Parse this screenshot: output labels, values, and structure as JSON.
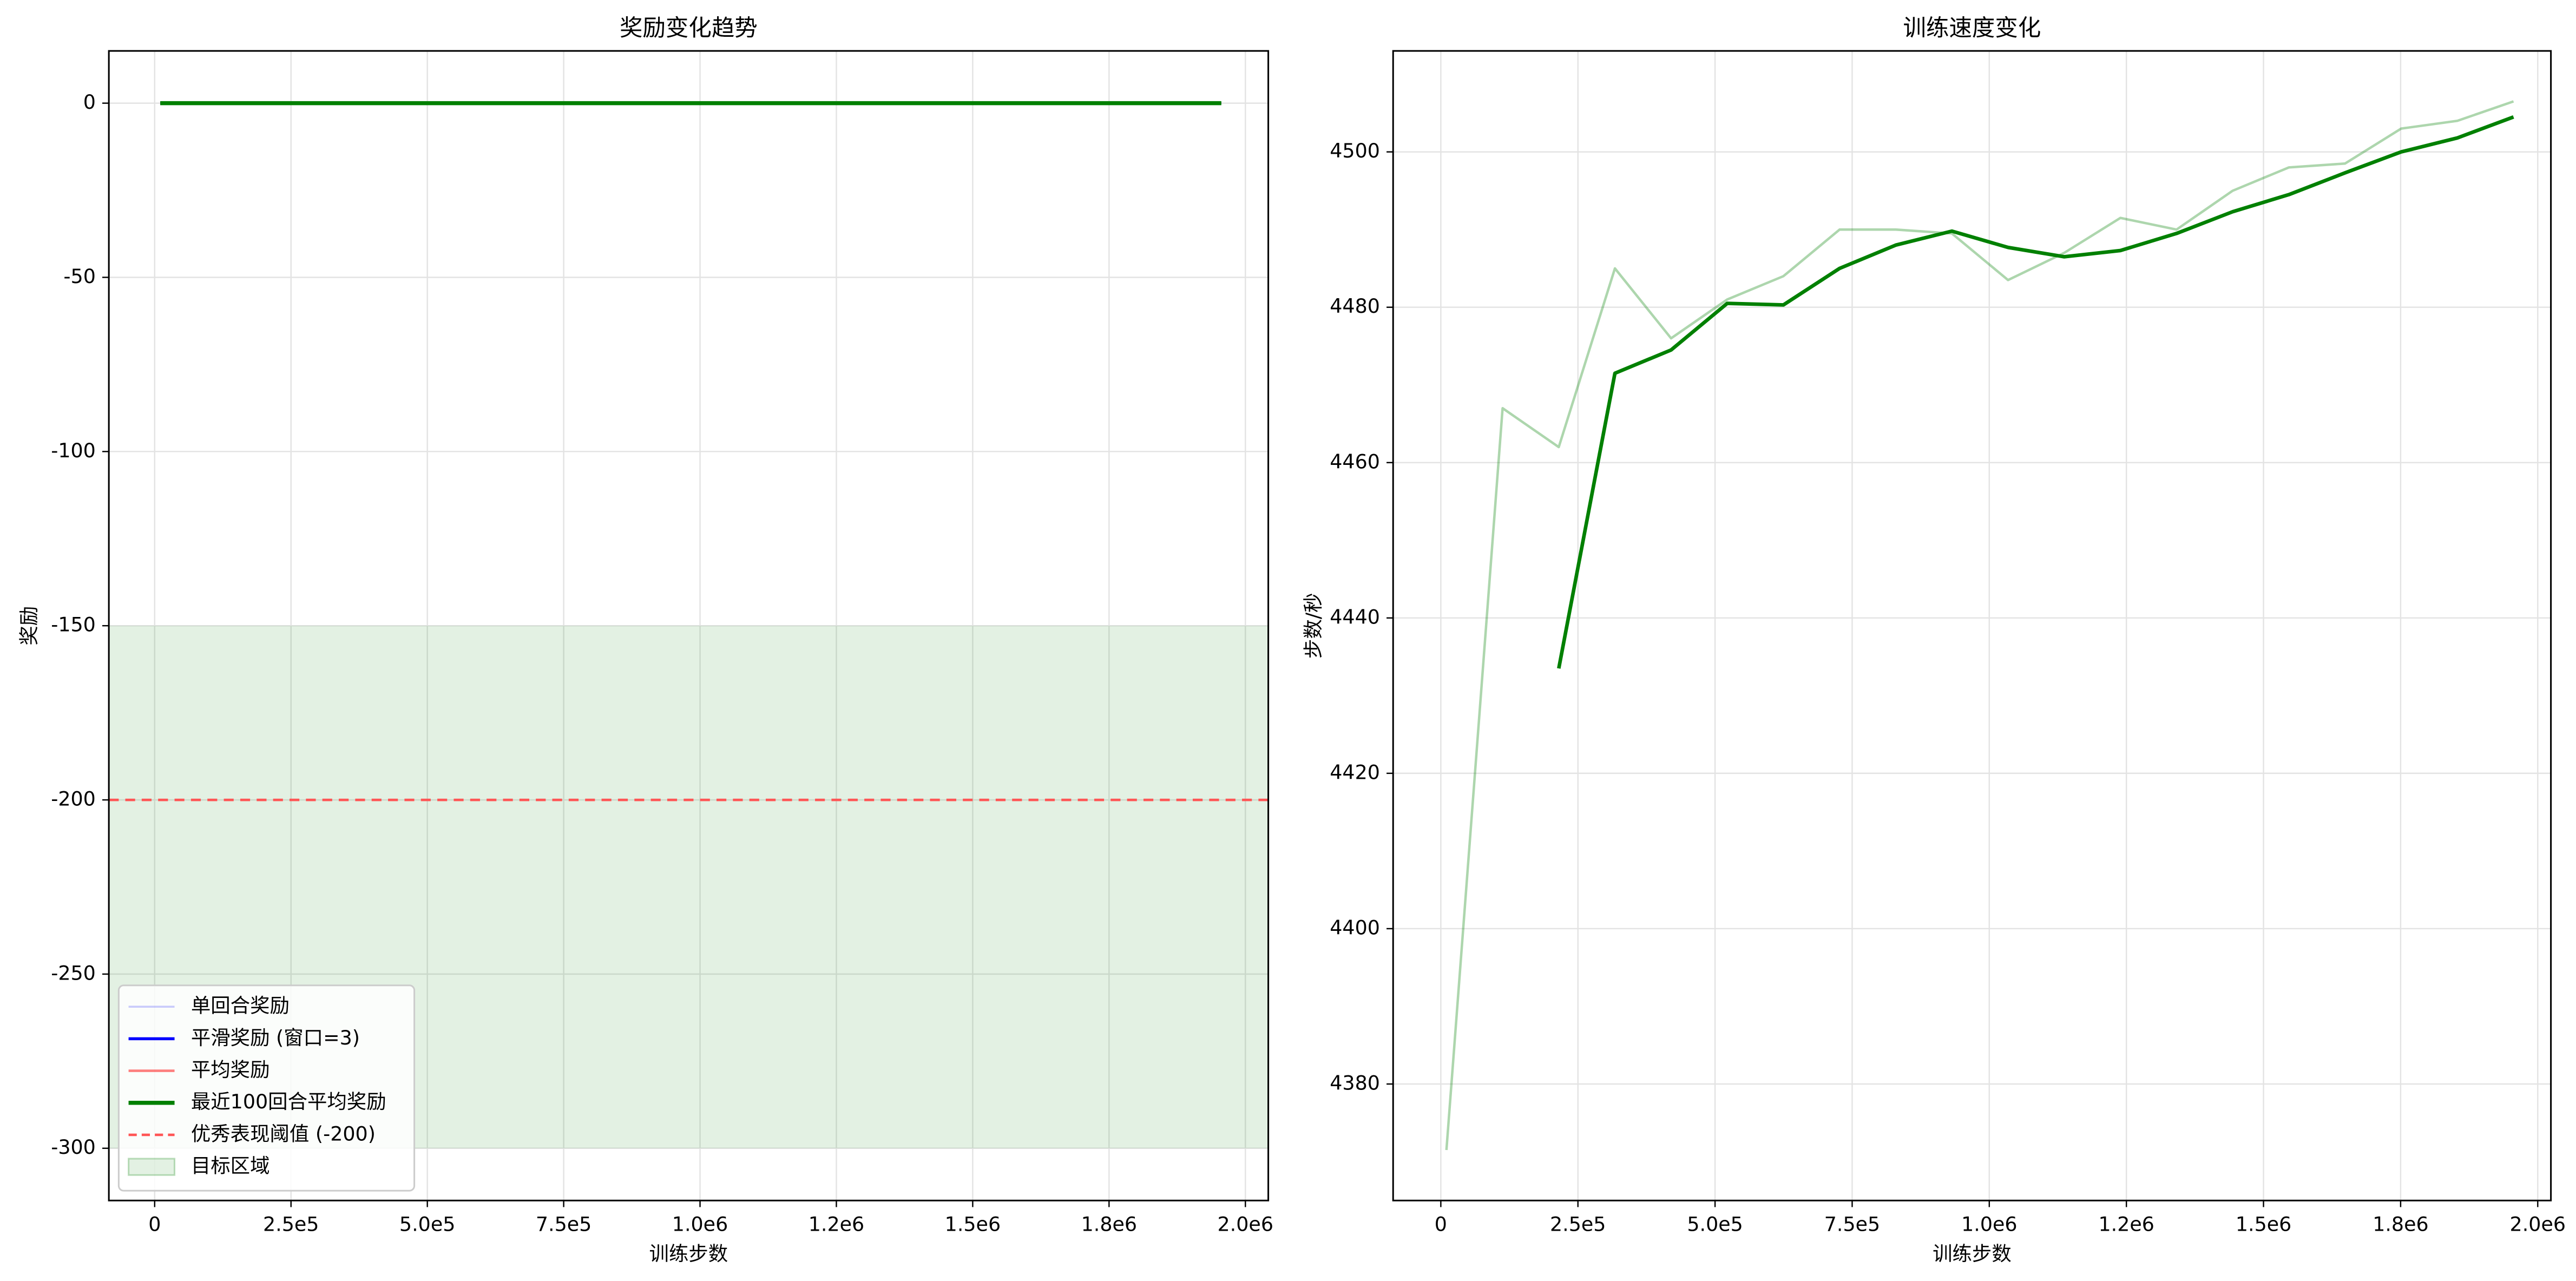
{
  "chart_data": [
    {
      "type": "line",
      "title": "奖励变化趋势",
      "xlabel": "训练步数",
      "ylabel": "奖励",
      "x": [
        10240,
        112640,
        215040,
        317440,
        419840,
        522240,
        624640,
        727040,
        829440,
        931840,
        1034240,
        1136640,
        1239040,
        1341440,
        1443840,
        1546240,
        1648640,
        1751040,
        1853440,
        1955840
      ],
      "series": [
        {
          "name": "单回合奖励",
          "color": "rgba(0,0,255,0.2)",
          "width": 1.2,
          "values": [
            0,
            0,
            0,
            0,
            0,
            0,
            0,
            0,
            0,
            0,
            0,
            0,
            0,
            0,
            0,
            0,
            0,
            0,
            0,
            0
          ]
        },
        {
          "name": "平滑奖励 (窗口=3)",
          "color": "#0000ff",
          "width": 1.8,
          "values": [
            0,
            0,
            0,
            0,
            0,
            0,
            0,
            0,
            0,
            0,
            0,
            0,
            0,
            0,
            0,
            0,
            0,
            0,
            0,
            0
          ]
        },
        {
          "name": "平均奖励",
          "color": "rgba(255,0,0,0.5)",
          "width": 1.5,
          "values": [
            0,
            0,
            0,
            0,
            0,
            0,
            0,
            0,
            0,
            0,
            0,
            0,
            0,
            0,
            0,
            0,
            0,
            0,
            0,
            0
          ]
        },
        {
          "name": "最近100回合平均奖励",
          "color": "#008000",
          "width": 2.5,
          "values": [
            0,
            0,
            0,
            0,
            0,
            0,
            0,
            0,
            0,
            0,
            0,
            0,
            0,
            0,
            0,
            0,
            0,
            0,
            0,
            0
          ]
        }
      ],
      "threshold": {
        "name": "优秀表现阈值 (-200)",
        "value": -200,
        "color": "#ff5555"
      },
      "target_zone": {
        "name": "目标区域",
        "range": [
          -300,
          -150
        ],
        "color": "rgba(0,128,0,0.11)"
      },
      "xlim": [
        -84000,
        2042000
      ],
      "ylim": [
        -315,
        15
      ],
      "xticks": [
        0,
        {
          "value": 250000,
          "label": "2.5e5"
        },
        {
          "value": 500000,
          "label": "5.0e5"
        },
        {
          "value": 750000,
          "label": "7.5e5"
        },
        {
          "value": 1000000,
          "label": "1.0e6"
        },
        {
          "value": 1250000,
          "label": "1.2e6"
        },
        {
          "value": 1500000,
          "label": "1.5e6"
        },
        {
          "value": 1750000,
          "label": "1.8e6"
        },
        {
          "value": 2000000,
          "label": "2.0e6"
        }
      ],
      "yticks": [
        -300,
        -250,
        -200,
        -150,
        -100,
        -50,
        0
      ],
      "grid": true,
      "legend": "lower left"
    },
    {
      "type": "line",
      "title": "训练速度变化",
      "xlabel": "训练步数",
      "ylabel": "步数/秒",
      "x": [
        10240,
        112640,
        215040,
        317440,
        419840,
        522240,
        624640,
        727040,
        829440,
        931840,
        1034240,
        1136640,
        1239040,
        1341440,
        1443840,
        1546240,
        1648640,
        1751040,
        1853440,
        1955840
      ],
      "series": [
        {
          "color": "rgba(0,128,0,0.32)",
          "width": 1.5,
          "values": [
            4371.5,
            4467,
            4462,
            4485,
            4476,
            4481,
            4484,
            4490,
            4490,
            4489.5,
            4483.5,
            4487,
            4491.5,
            4490,
            4495,
            4498,
            4498.5,
            4503,
            4504,
            4506.5
          ]
        },
        {
          "color": "#008000",
          "width": 2.2,
          "values": [
            null,
            null,
            4433.5,
            4471.5,
            4474.5,
            4480.5,
            4480.3,
            4485,
            4488,
            4489.8,
            4487.7,
            4486.5,
            4487.3,
            4489.5,
            4492.3,
            4494.5,
            4497.3,
            4500,
            4501.8,
            4504.5
          ]
        }
      ],
      "xlim": [
        -87000,
        2024000
      ],
      "ylim": [
        4365,
        4513
      ],
      "xticks": [
        0,
        {
          "value": 250000,
          "label": "2.5e5"
        },
        {
          "value": 500000,
          "label": "5.0e5"
        },
        {
          "value": 750000,
          "label": "7.5e5"
        },
        {
          "value": 1000000,
          "label": "1.0e6"
        },
        {
          "value": 1250000,
          "label": "1.2e6"
        },
        {
          "value": 1500000,
          "label": "1.5e6"
        },
        {
          "value": 1750000,
          "label": "1.8e6"
        },
        {
          "value": 2000000,
          "label": "2.0e6"
        }
      ],
      "yticks": [
        4380,
        4400,
        4420,
        4440,
        4460,
        4480,
        4500
      ],
      "grid": true
    }
  ]
}
